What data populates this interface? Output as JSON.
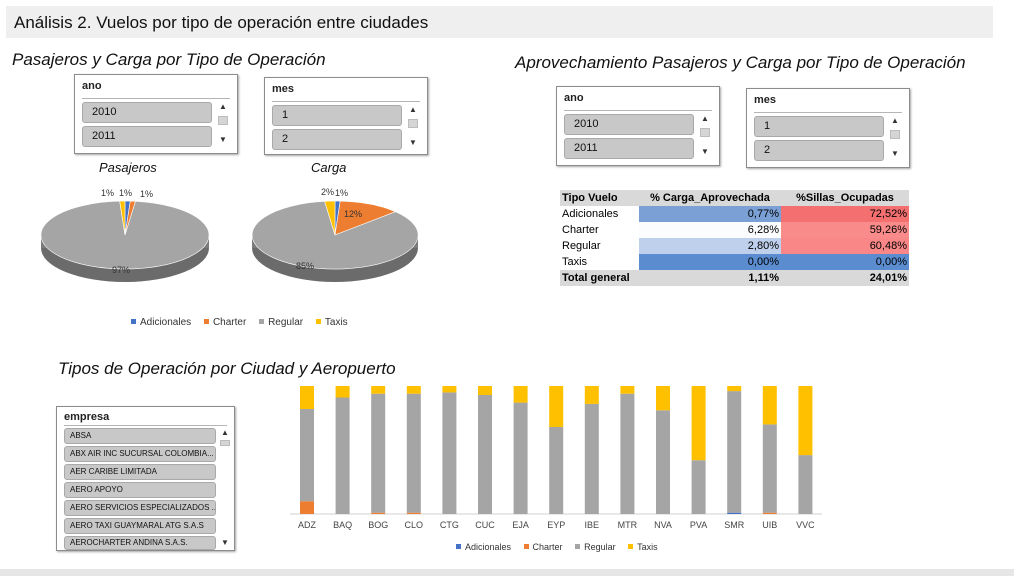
{
  "header": {
    "title": "Análisis 2. Vuelos por tipo de operación entre ciudades"
  },
  "section1": {
    "title": "Pasajeros y Carga por Tipo de Operación",
    "slicer_ano": {
      "header": "ano",
      "items": [
        "2010",
        "2011"
      ]
    },
    "slicer_mes": {
      "header": "mes",
      "items": [
        "1",
        "2"
      ]
    },
    "pie_pasajeros": {
      "label": "Pasajeros",
      "labels": [
        "1%",
        "1%",
        "1%",
        "97%"
      ]
    },
    "pie_carga": {
      "label": "Carga",
      "labels": [
        "2%",
        "1%",
        "12%",
        "85%"
      ]
    }
  },
  "section2": {
    "title": "Aprovechamiento Pasajeros y Carga por Tipo de Operación",
    "slicer_ano": {
      "header": "ano",
      "items": [
        "2010",
        "2011"
      ]
    },
    "slicer_mes": {
      "header": "mes",
      "items": [
        "1",
        "2"
      ]
    },
    "table": {
      "headers": [
        "Tipo Vuelo",
        "% Carga_Aprovechada",
        "%Sillas_Ocupadas"
      ],
      "rows": [
        {
          "tipo": "Adicionales",
          "carga": "0,77%",
          "sillas": "72,52%"
        },
        {
          "tipo": "Charter",
          "carga": "6,28%",
          "sillas": "59,26%"
        },
        {
          "tipo": "Regular",
          "carga": "2,80%",
          "sillas": "60,48%"
        },
        {
          "tipo": "Taxis",
          "carga": "0,00%",
          "sillas": "0,00%"
        }
      ],
      "total": {
        "tipo": "Total general",
        "carga": "1,11%",
        "sillas": "24,01%"
      }
    }
  },
  "section3": {
    "title": "Tipos de Operación por Ciudad y Aeropuerto",
    "slicer_empresa": {
      "header": "empresa",
      "items": [
        "ABSA",
        "ABX AIR INC SUCURSAL COLOMBIA...",
        "AER CARIBE LIMITADA",
        "AERO APOYO",
        "AERO SERVICIOS ESPECIALIZADOS ...",
        "AERO TAXI GUAYMARAL ATG S.A.S",
        "AEROCHARTER ANDINA S.A.S."
      ]
    }
  },
  "legend": [
    {
      "name": "Adicionales",
      "color": "#4472c4"
    },
    {
      "name": "Charter",
      "color": "#ed7d31"
    },
    {
      "name": "Regular",
      "color": "#a5a5a5"
    },
    {
      "name": "Taxis",
      "color": "#ffc000"
    }
  ],
  "chart_data": [
    {
      "type": "pie",
      "title": "Pasajeros",
      "categories": [
        "Adicionales",
        "Charter",
        "Regular",
        "Taxis"
      ],
      "values": [
        1,
        1,
        97,
        1
      ],
      "colors": [
        "#4472c4",
        "#ed7d31",
        "#a5a5a5",
        "#ffc000"
      ]
    },
    {
      "type": "pie",
      "title": "Carga",
      "categories": [
        "Adicionales",
        "Charter",
        "Regular",
        "Taxis"
      ],
      "values": [
        1,
        12,
        85,
        2
      ],
      "colors": [
        "#4472c4",
        "#ed7d31",
        "#a5a5a5",
        "#ffc000"
      ]
    },
    {
      "type": "bar",
      "stacked": "percent",
      "categories": [
        "ADZ",
        "BAQ",
        "BOG",
        "CLO",
        "CTG",
        "CUC",
        "EJA",
        "EYP",
        "IBE",
        "MTR",
        "NVA",
        "PVA",
        "SMR",
        "UIB",
        "VVC"
      ],
      "series": [
        {
          "name": "Adicionales",
          "values": [
            0,
            0,
            0,
            0,
            0,
            0,
            0,
            0,
            0,
            0,
            0,
            0,
            1,
            0,
            0
          ]
        },
        {
          "name": "Charter",
          "values": [
            10,
            0,
            1,
            1,
            0,
            0,
            0,
            0,
            0,
            0,
            0,
            0,
            0,
            1,
            0
          ]
        },
        {
          "name": "Regular",
          "values": [
            72,
            91,
            93,
            93,
            95,
            93,
            87,
            68,
            86,
            94,
            81,
            42,
            95,
            69,
            46
          ]
        },
        {
          "name": "Taxis",
          "values": [
            18,
            9,
            6,
            6,
            5,
            7,
            13,
            32,
            14,
            6,
            19,
            58,
            4,
            30,
            54
          ]
        }
      ],
      "ylim": [
        0,
        100
      ],
      "legend": "bottom"
    }
  ]
}
